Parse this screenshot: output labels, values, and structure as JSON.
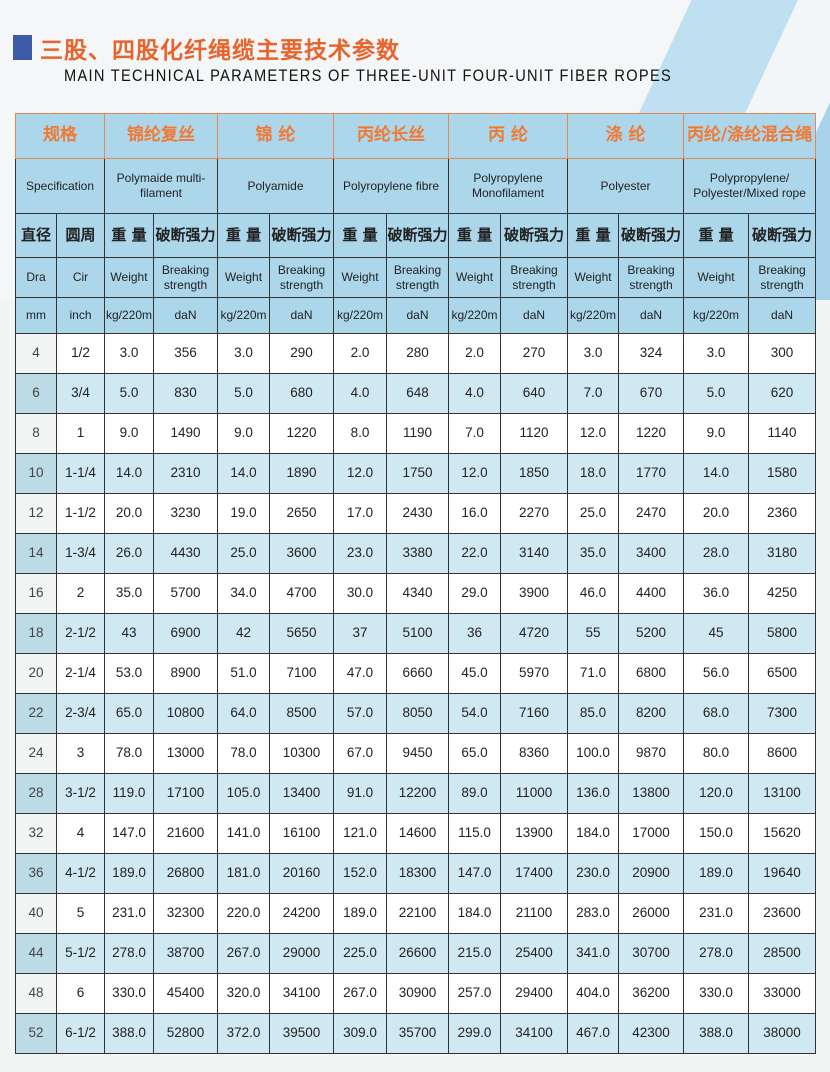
{
  "header": {
    "title_cn": "三股、四股化纤绳缆主要技术参数",
    "title_en": "MAIN TECHNICAL PARAMETERS OF THREE-UNIT FOUR-UNIT FIBER ROPES",
    "accent_color": "#e8642c",
    "marker_color": "#3c5aa6"
  },
  "table": {
    "spec_cn": "规格",
    "spec_en": "Specification",
    "groups": [
      {
        "cn": "锦纶复丝",
        "en": "Polymaide multi-filament"
      },
      {
        "cn": "锦 纶",
        "en": "Polyamide"
      },
      {
        "cn": "丙纶长丝",
        "en": "Polyropylene fibre"
      },
      {
        "cn": "丙 纶",
        "en": "Polyropylene Monofilament"
      },
      {
        "cn": "涤 纶",
        "en": "Polyester"
      },
      {
        "cn": "丙纶/涤纶混合绳",
        "en": "Polypropylene/ Polyester/Mixed rope"
      }
    ],
    "sub_cn": {
      "dia": "直径",
      "cir": "圆周",
      "weight": "重 量",
      "break": "破断强力"
    },
    "sub_en": {
      "dia": "Dra",
      "cir": "Cir",
      "weight": "Weight",
      "break": "Breaking strength"
    },
    "units": {
      "dia": "mm",
      "cir": "inch",
      "weight": "kg/220m",
      "break": "daN"
    },
    "rows": [
      [
        "4",
        "1/2",
        "3.0",
        "356",
        "3.0",
        "290",
        "2.0",
        "280",
        "2.0",
        "270",
        "3.0",
        "324",
        "3.0",
        "300"
      ],
      [
        "6",
        "3/4",
        "5.0",
        "830",
        "5.0",
        "680",
        "4.0",
        "648",
        "4.0",
        "640",
        "7.0",
        "670",
        "5.0",
        "620"
      ],
      [
        "8",
        "1",
        "9.0",
        "1490",
        "9.0",
        "1220",
        "8.0",
        "1190",
        "7.0",
        "1120",
        "12.0",
        "1220",
        "9.0",
        "1140"
      ],
      [
        "10",
        "1-1/4",
        "14.0",
        "2310",
        "14.0",
        "1890",
        "12.0",
        "1750",
        "12.0",
        "1850",
        "18.0",
        "1770",
        "14.0",
        "1580"
      ],
      [
        "12",
        "1-1/2",
        "20.0",
        "3230",
        "19.0",
        "2650",
        "17.0",
        "2430",
        "16.0",
        "2270",
        "25.0",
        "2470",
        "20.0",
        "2360"
      ],
      [
        "14",
        "1-3/4",
        "26.0",
        "4430",
        "25.0",
        "3600",
        "23.0",
        "3380",
        "22.0",
        "3140",
        "35.0",
        "3400",
        "28.0",
        "3180"
      ],
      [
        "16",
        "2",
        "35.0",
        "5700",
        "34.0",
        "4700",
        "30.0",
        "4340",
        "29.0",
        "3900",
        "46.0",
        "4400",
        "36.0",
        "4250"
      ],
      [
        "18",
        "2-1/2",
        "43",
        "6900",
        "42",
        "5650",
        "37",
        "5100",
        "36",
        "4720",
        "55",
        "5200",
        "45",
        "5800"
      ],
      [
        "20",
        "2-1/4",
        "53.0",
        "8900",
        "51.0",
        "7100",
        "47.0",
        "6660",
        "45.0",
        "5970",
        "71.0",
        "6800",
        "56.0",
        "6500"
      ],
      [
        "22",
        "2-3/4",
        "65.0",
        "10800",
        "64.0",
        "8500",
        "57.0",
        "8050",
        "54.0",
        "7160",
        "85.0",
        "8200",
        "68.0",
        "7300"
      ],
      [
        "24",
        "3",
        "78.0",
        "13000",
        "78.0",
        "10300",
        "67.0",
        "9450",
        "65.0",
        "8360",
        "100.0",
        "9870",
        "80.0",
        "8600"
      ],
      [
        "28",
        "3-1/2",
        "119.0",
        "17100",
        "105.0",
        "13400",
        "91.0",
        "12200",
        "89.0",
        "11000",
        "136.0",
        "13800",
        "120.0",
        "13100"
      ],
      [
        "32",
        "4",
        "147.0",
        "21600",
        "141.0",
        "16100",
        "121.0",
        "14600",
        "115.0",
        "13900",
        "184.0",
        "17000",
        "150.0",
        "15620"
      ],
      [
        "36",
        "4-1/2",
        "189.0",
        "26800",
        "181.0",
        "20160",
        "152.0",
        "18300",
        "147.0",
        "17400",
        "230.0",
        "20900",
        "189.0",
        "19640"
      ],
      [
        "40",
        "5",
        "231.0",
        "32300",
        "220.0",
        "24200",
        "189.0",
        "22100",
        "184.0",
        "21100",
        "283.0",
        "26000",
        "231.0",
        "23600"
      ],
      [
        "44",
        "5-1/2",
        "278.0",
        "38700",
        "267.0",
        "29000",
        "225.0",
        "26600",
        "215.0",
        "25400",
        "341.0",
        "30700",
        "278.0",
        "28500"
      ],
      [
        "48",
        "6",
        "330.0",
        "45400",
        "320.0",
        "34100",
        "267.0",
        "30900",
        "257.0",
        "29400",
        "404.0",
        "36200",
        "330.0",
        "33000"
      ],
      [
        "52",
        "6-1/2",
        "388.0",
        "52800",
        "372.0",
        "39500",
        "309.0",
        "35700",
        "299.0",
        "34100",
        "467.0",
        "42300",
        "388.0",
        "38000"
      ]
    ]
  }
}
